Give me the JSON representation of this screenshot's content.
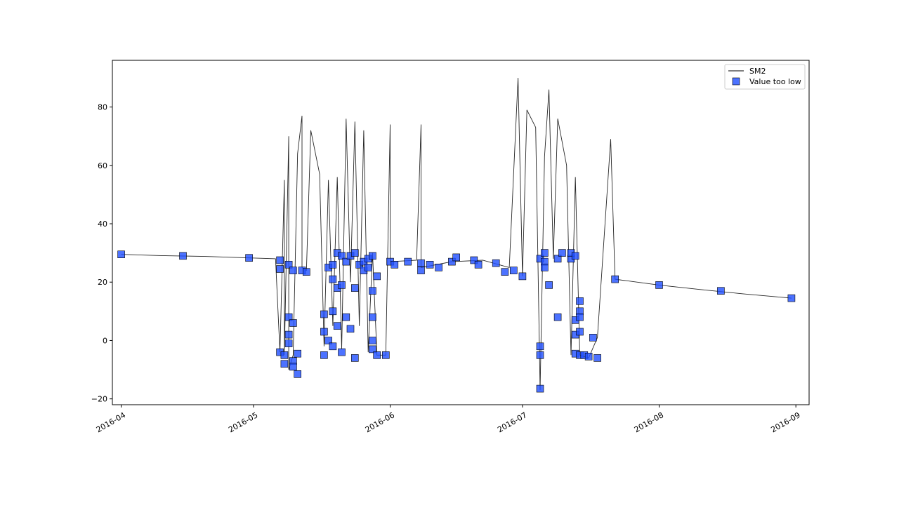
{
  "chart_data": {
    "type": "line",
    "title": "",
    "xlabel": "",
    "ylabel": "",
    "ylim": [
      -22,
      96
    ],
    "xlim": [
      "2016-03-30",
      "2016-09-04"
    ],
    "xticks": [
      "2016-04",
      "2016-05",
      "2016-06",
      "2016-07",
      "2016-08",
      "2016-09"
    ],
    "yticks": [
      -20,
      0,
      20,
      40,
      60,
      80
    ],
    "legend_position": "top-right",
    "series": [
      {
        "name": "SM2",
        "kind": "line",
        "color": "#000000",
        "points": [
          [
            "2016-04-01",
            29.5
          ],
          [
            "2016-04-10",
            29.1
          ],
          [
            "2016-04-20",
            28.8
          ],
          [
            "2016-04-30",
            28.3
          ],
          [
            "2016-05-06",
            28.0
          ],
          [
            "2016-05-07",
            -4.0
          ],
          [
            "2016-05-08",
            55.0
          ],
          [
            "2016-05-08",
            -5.0
          ],
          [
            "2016-05-09",
            70.0
          ],
          [
            "2016-05-09",
            -10.0
          ],
          [
            "2016-05-10",
            -5.0
          ],
          [
            "2016-05-11",
            64.0
          ],
          [
            "2016-05-12",
            77.0
          ],
          [
            "2016-05-12",
            25.0
          ],
          [
            "2016-05-13",
            24.0
          ],
          [
            "2016-05-14",
            72.0
          ],
          [
            "2016-05-16",
            57.0
          ],
          [
            "2016-05-17",
            -2.0
          ],
          [
            "2016-05-18",
            55.0
          ],
          [
            "2016-05-19",
            5.0
          ],
          [
            "2016-05-20",
            56.0
          ],
          [
            "2016-05-21",
            -3.0
          ],
          [
            "2016-05-22",
            76.0
          ],
          [
            "2016-05-23",
            20.0
          ],
          [
            "2016-05-24",
            75.0
          ],
          [
            "2016-05-25",
            5.0
          ],
          [
            "2016-05-26",
            72.0
          ],
          [
            "2016-05-27",
            -4.0
          ],
          [
            "2016-05-28",
            30.0
          ],
          [
            "2016-05-29",
            -5.0
          ],
          [
            "2016-05-31",
            -5.0
          ],
          [
            "2016-06-01",
            74.0
          ],
          [
            "2016-06-01",
            27.0
          ],
          [
            "2016-06-07",
            27.5
          ],
          [
            "2016-06-08",
            74.0
          ],
          [
            "2016-06-08",
            25.0
          ],
          [
            "2016-06-15",
            27.0
          ],
          [
            "2016-06-22",
            27.5
          ],
          [
            "2016-06-28",
            25.0
          ],
          [
            "2016-06-30",
            90.0
          ],
          [
            "2016-07-01",
            22.0
          ],
          [
            "2016-07-02",
            79.0
          ],
          [
            "2016-07-04",
            73.0
          ],
          [
            "2016-07-05",
            -17.0
          ],
          [
            "2016-07-06",
            63.0
          ],
          [
            "2016-07-07",
            86.0
          ],
          [
            "2016-07-08",
            28.0
          ],
          [
            "2016-07-09",
            76.0
          ],
          [
            "2016-07-11",
            60.0
          ],
          [
            "2016-07-12",
            -5.0
          ],
          [
            "2016-07-13",
            56.0
          ],
          [
            "2016-07-14",
            -5.0
          ],
          [
            "2016-07-16",
            -6.0
          ],
          [
            "2016-07-18",
            1.0
          ],
          [
            "2016-07-21",
            69.0
          ],
          [
            "2016-07-22",
            21.0
          ],
          [
            "2016-08-01",
            19.0
          ],
          [
            "2016-08-10",
            17.5
          ],
          [
            "2016-08-20",
            16.0
          ],
          [
            "2016-08-31",
            14.5
          ]
        ]
      },
      {
        "name": "Value too low",
        "kind": "scatter",
        "marker": "square",
        "color": "#1f4fff",
        "points": [
          [
            "2016-04-01",
            29.5
          ],
          [
            "2016-04-15",
            29.0
          ],
          [
            "2016-04-30",
            28.3
          ],
          [
            "2016-05-07",
            27.5
          ],
          [
            "2016-05-07",
            24.5
          ],
          [
            "2016-05-07",
            -4.0
          ],
          [
            "2016-05-08",
            -8.0
          ],
          [
            "2016-05-08",
            -5.0
          ],
          [
            "2016-05-09",
            26.0
          ],
          [
            "2016-05-09",
            8.0
          ],
          [
            "2016-05-09",
            2.0
          ],
          [
            "2016-05-09",
            -1.0
          ],
          [
            "2016-05-10",
            6.0
          ],
          [
            "2016-05-10",
            24.0
          ],
          [
            "2016-05-10",
            -7.0
          ],
          [
            "2016-05-10",
            -9.0
          ],
          [
            "2016-05-11",
            -11.5
          ],
          [
            "2016-05-11",
            -4.5
          ],
          [
            "2016-05-12",
            24.0
          ],
          [
            "2016-05-13",
            23.5
          ],
          [
            "2016-05-17",
            9.0
          ],
          [
            "2016-05-17",
            3.0
          ],
          [
            "2016-05-17",
            -5.0
          ],
          [
            "2016-05-18",
            25.0
          ],
          [
            "2016-05-18",
            0.0
          ],
          [
            "2016-05-19",
            26.0
          ],
          [
            "2016-05-19",
            21.0
          ],
          [
            "2016-05-19",
            10.0
          ],
          [
            "2016-05-19",
            -2.0
          ],
          [
            "2016-05-20",
            30.0
          ],
          [
            "2016-05-20",
            18.0
          ],
          [
            "2016-05-20",
            5.0
          ],
          [
            "2016-05-21",
            29.0
          ],
          [
            "2016-05-21",
            19.0
          ],
          [
            "2016-05-21",
            -4.0
          ],
          [
            "2016-05-22",
            27.0
          ],
          [
            "2016-05-22",
            8.0
          ],
          [
            "2016-05-23",
            29.0
          ],
          [
            "2016-05-23",
            4.0
          ],
          [
            "2016-05-24",
            30.0
          ],
          [
            "2016-05-24",
            18.0
          ],
          [
            "2016-05-24",
            -6.0
          ],
          [
            "2016-05-25",
            26.0
          ],
          [
            "2016-05-26",
            27.0
          ],
          [
            "2016-05-26",
            24.0
          ],
          [
            "2016-05-27",
            25.0
          ],
          [
            "2016-05-27",
            28.0
          ],
          [
            "2016-05-28",
            29.0
          ],
          [
            "2016-05-28",
            17.0
          ],
          [
            "2016-05-28",
            8.0
          ],
          [
            "2016-05-28",
            0.0
          ],
          [
            "2016-05-28",
            -3.0
          ],
          [
            "2016-05-29",
            22.0
          ],
          [
            "2016-05-29",
            -5.0
          ],
          [
            "2016-05-31",
            -5.0
          ],
          [
            "2016-06-01",
            27.0
          ],
          [
            "2016-06-02",
            26.0
          ],
          [
            "2016-06-05",
            27.0
          ],
          [
            "2016-06-08",
            26.5
          ],
          [
            "2016-06-08",
            24.0
          ],
          [
            "2016-06-10",
            26.0
          ],
          [
            "2016-06-12",
            25.0
          ],
          [
            "2016-06-15",
            27.0
          ],
          [
            "2016-06-16",
            28.5
          ],
          [
            "2016-06-20",
            27.5
          ],
          [
            "2016-06-21",
            26.0
          ],
          [
            "2016-06-25",
            26.5
          ],
          [
            "2016-06-27",
            23.5
          ],
          [
            "2016-06-29",
            24.0
          ],
          [
            "2016-07-01",
            22.0
          ],
          [
            "2016-07-05",
            -16.5
          ],
          [
            "2016-07-05",
            -5.0
          ],
          [
            "2016-07-05",
            -2.0
          ],
          [
            "2016-07-05",
            28.0
          ],
          [
            "2016-07-06",
            30.0
          ],
          [
            "2016-07-06",
            27.0
          ],
          [
            "2016-07-06",
            25.0
          ],
          [
            "2016-07-07",
            19.0
          ],
          [
            "2016-07-09",
            8.0
          ],
          [
            "2016-07-09",
            28.0
          ],
          [
            "2016-07-10",
            30.0
          ],
          [
            "2016-07-12",
            28.0
          ],
          [
            "2016-07-12",
            30.0
          ],
          [
            "2016-07-13",
            29.0
          ],
          [
            "2016-07-13",
            7.0
          ],
          [
            "2016-07-13",
            2.0
          ],
          [
            "2016-07-13",
            -4.5
          ],
          [
            "2016-07-14",
            13.5
          ],
          [
            "2016-07-14",
            10.0
          ],
          [
            "2016-07-14",
            8.0
          ],
          [
            "2016-07-14",
            3.0
          ],
          [
            "2016-07-14",
            -5.0
          ],
          [
            "2016-07-15",
            -5.0
          ],
          [
            "2016-07-16",
            -5.5
          ],
          [
            "2016-07-17",
            1.0
          ],
          [
            "2016-07-18",
            -6.0
          ],
          [
            "2016-07-22",
            21.0
          ],
          [
            "2016-08-01",
            19.0
          ],
          [
            "2016-08-15",
            17.0
          ],
          [
            "2016-08-31",
            14.5
          ]
        ]
      }
    ]
  }
}
